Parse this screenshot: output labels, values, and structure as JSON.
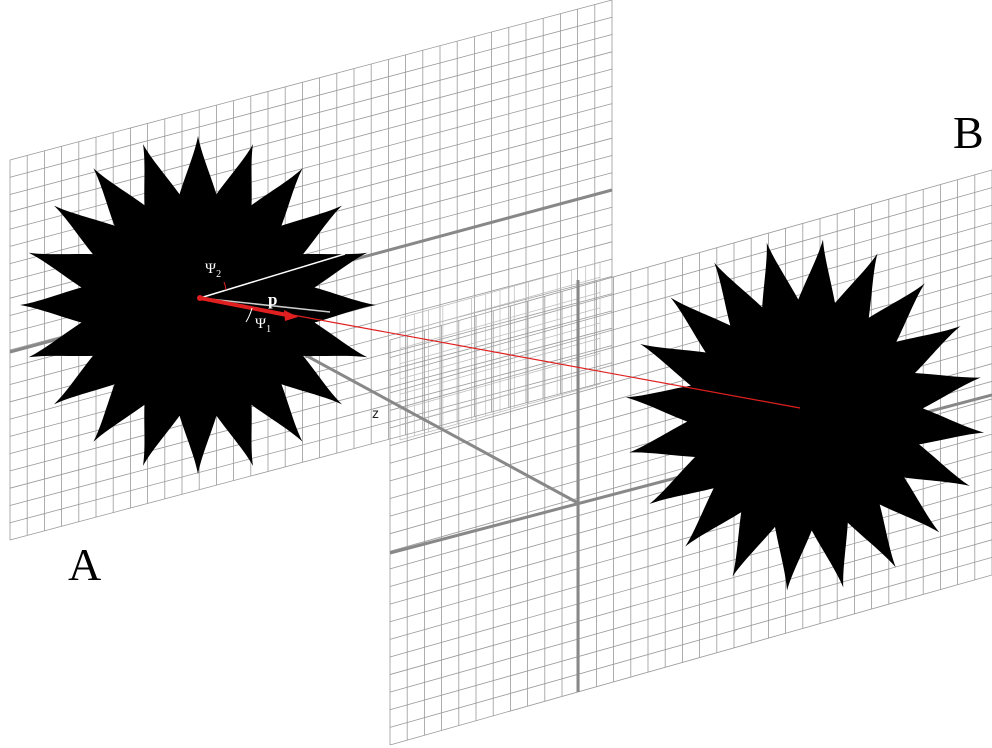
{
  "labels": {
    "plane_a": "A",
    "plane_b": "B",
    "angle_2": {
      "symbol": "Ψ",
      "subscript": "2"
    },
    "angle_1": {
      "symbol": "Ψ",
      "subscript": "1"
    },
    "vector": "p",
    "axis": "z"
  }
}
